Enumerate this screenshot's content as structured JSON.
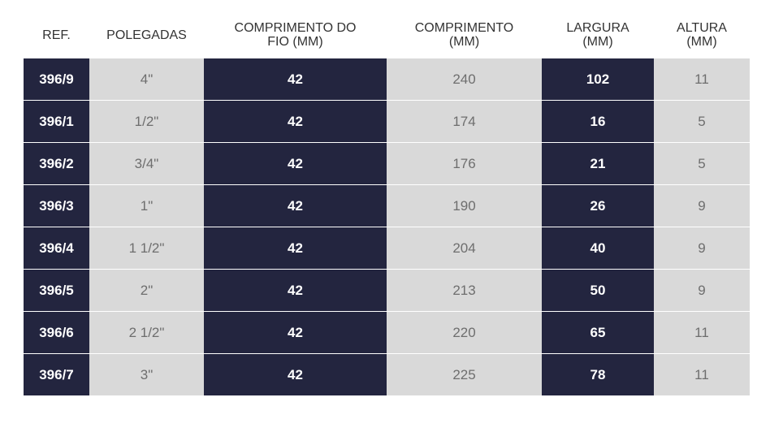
{
  "table": {
    "headers": [
      [
        "REF."
      ],
      [
        "POLEGADAS"
      ],
      [
        "COMPRIMENTO DO",
        "FIO (MM)"
      ],
      [
        "COMPRIMENTO",
        "(MM)"
      ],
      [
        "LARGURA",
        "(MM)"
      ],
      [
        "ALTURA",
        "(MM)"
      ]
    ],
    "rows": [
      [
        "396/9",
        "4\"",
        "42",
        "240",
        "102",
        "11"
      ],
      [
        "396/1",
        "1/2\"",
        "42",
        "174",
        "16",
        "5"
      ],
      [
        "396/2",
        "3/4\"",
        "42",
        "176",
        "21",
        "5"
      ],
      [
        "396/3",
        "1\"",
        "42",
        "190",
        "26",
        "9"
      ],
      [
        "396/4",
        "1 1/2\"",
        "42",
        "204",
        "40",
        "9"
      ],
      [
        "396/5",
        "2\"",
        "42",
        "213",
        "50",
        "9"
      ],
      [
        "396/6",
        "2 1/2\"",
        "42",
        "220",
        "65",
        "11"
      ],
      [
        "396/7",
        "3\"",
        "42",
        "225",
        "78",
        "11"
      ]
    ]
  },
  "colors": {
    "dark_column": "#23253f",
    "light_column": "#d9d9d9",
    "header_text": "#333333"
  }
}
